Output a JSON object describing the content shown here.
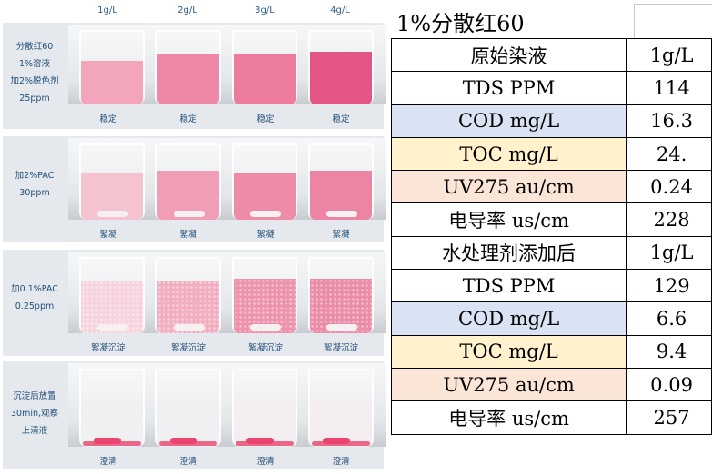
{
  "columns": [
    "1g/L",
    "2g/L",
    "3g/L",
    "4g/L"
  ],
  "rows": [
    {
      "label": [
        "分散红60",
        "1%溶液",
        "加2%脱色剂",
        "25ppm"
      ],
      "status": [
        "稳定",
        "稳定",
        "稳定",
        "稳定"
      ]
    },
    {
      "label": [
        "加2%PAC",
        "30ppm"
      ],
      "status": [
        "絮凝",
        "絮凝",
        "絮凝",
        "絮凝"
      ]
    },
    {
      "label": [
        "加0.1%PAC",
        "0.25ppm"
      ],
      "status": [
        "絮凝沉淀",
        "絮凝沉淀",
        "絮凝沉淀",
        "絮凝沉淀"
      ]
    },
    {
      "label": [
        "沉淀后放置",
        "30min,观察",
        "上清液"
      ],
      "status": [
        "澄清",
        "澄清",
        "澄清",
        "澄清"
      ]
    }
  ],
  "liquid_colors": [
    [
      "#f3a6bb",
      "#ef88a6",
      "#ec7b9d",
      "#e45585"
    ],
    [
      "#f5c2d0",
      "#f19db5",
      "#ee8ca8",
      "#eb85a3"
    ],
    [
      "#f7d3dd",
      "#f2aec1",
      "#ee93ad",
      "#eb8ca8"
    ],
    [
      "#eef0f2",
      "#f0eff1",
      "#f3eef0",
      "#f4eef1"
    ]
  ],
  "table": {
    "title": "1%分散红60",
    "rows": [
      {
        "label": "原始染液",
        "value": "1g/L",
        "bg": "#ffffff"
      },
      {
        "label": "TDS   PPM",
        "value": "114",
        "bg": "#ffffff"
      },
      {
        "label": "COD   mg/L",
        "value": "16.3",
        "bg": "#dae3f3"
      },
      {
        "label": "TOC   mg/L",
        "value": "24.",
        "bg": "#fff2cc"
      },
      {
        "label": "UV275   au/cm",
        "value": "0.24",
        "bg": "#fbe5d6"
      },
      {
        "label": "电导率   us/cm",
        "value": "228",
        "bg": "#ffffff"
      },
      {
        "label": "水处理剂添加后",
        "value": "1g/L",
        "bg": "#ffffff"
      },
      {
        "label": "TDS   PPM",
        "value": "129",
        "bg": "#ffffff"
      },
      {
        "label": "COD   mg/L",
        "value": "6.6",
        "bg": "#dae3f3"
      },
      {
        "label": "TOC   mg/L",
        "value": "9.4",
        "bg": "#fff2cc"
      },
      {
        "label": "UV275   au/cm",
        "value": "0.09",
        "bg": "#fbe5d6"
      },
      {
        "label": "电导率   us/cm",
        "value": "257",
        "bg": "#ffffff"
      }
    ]
  }
}
